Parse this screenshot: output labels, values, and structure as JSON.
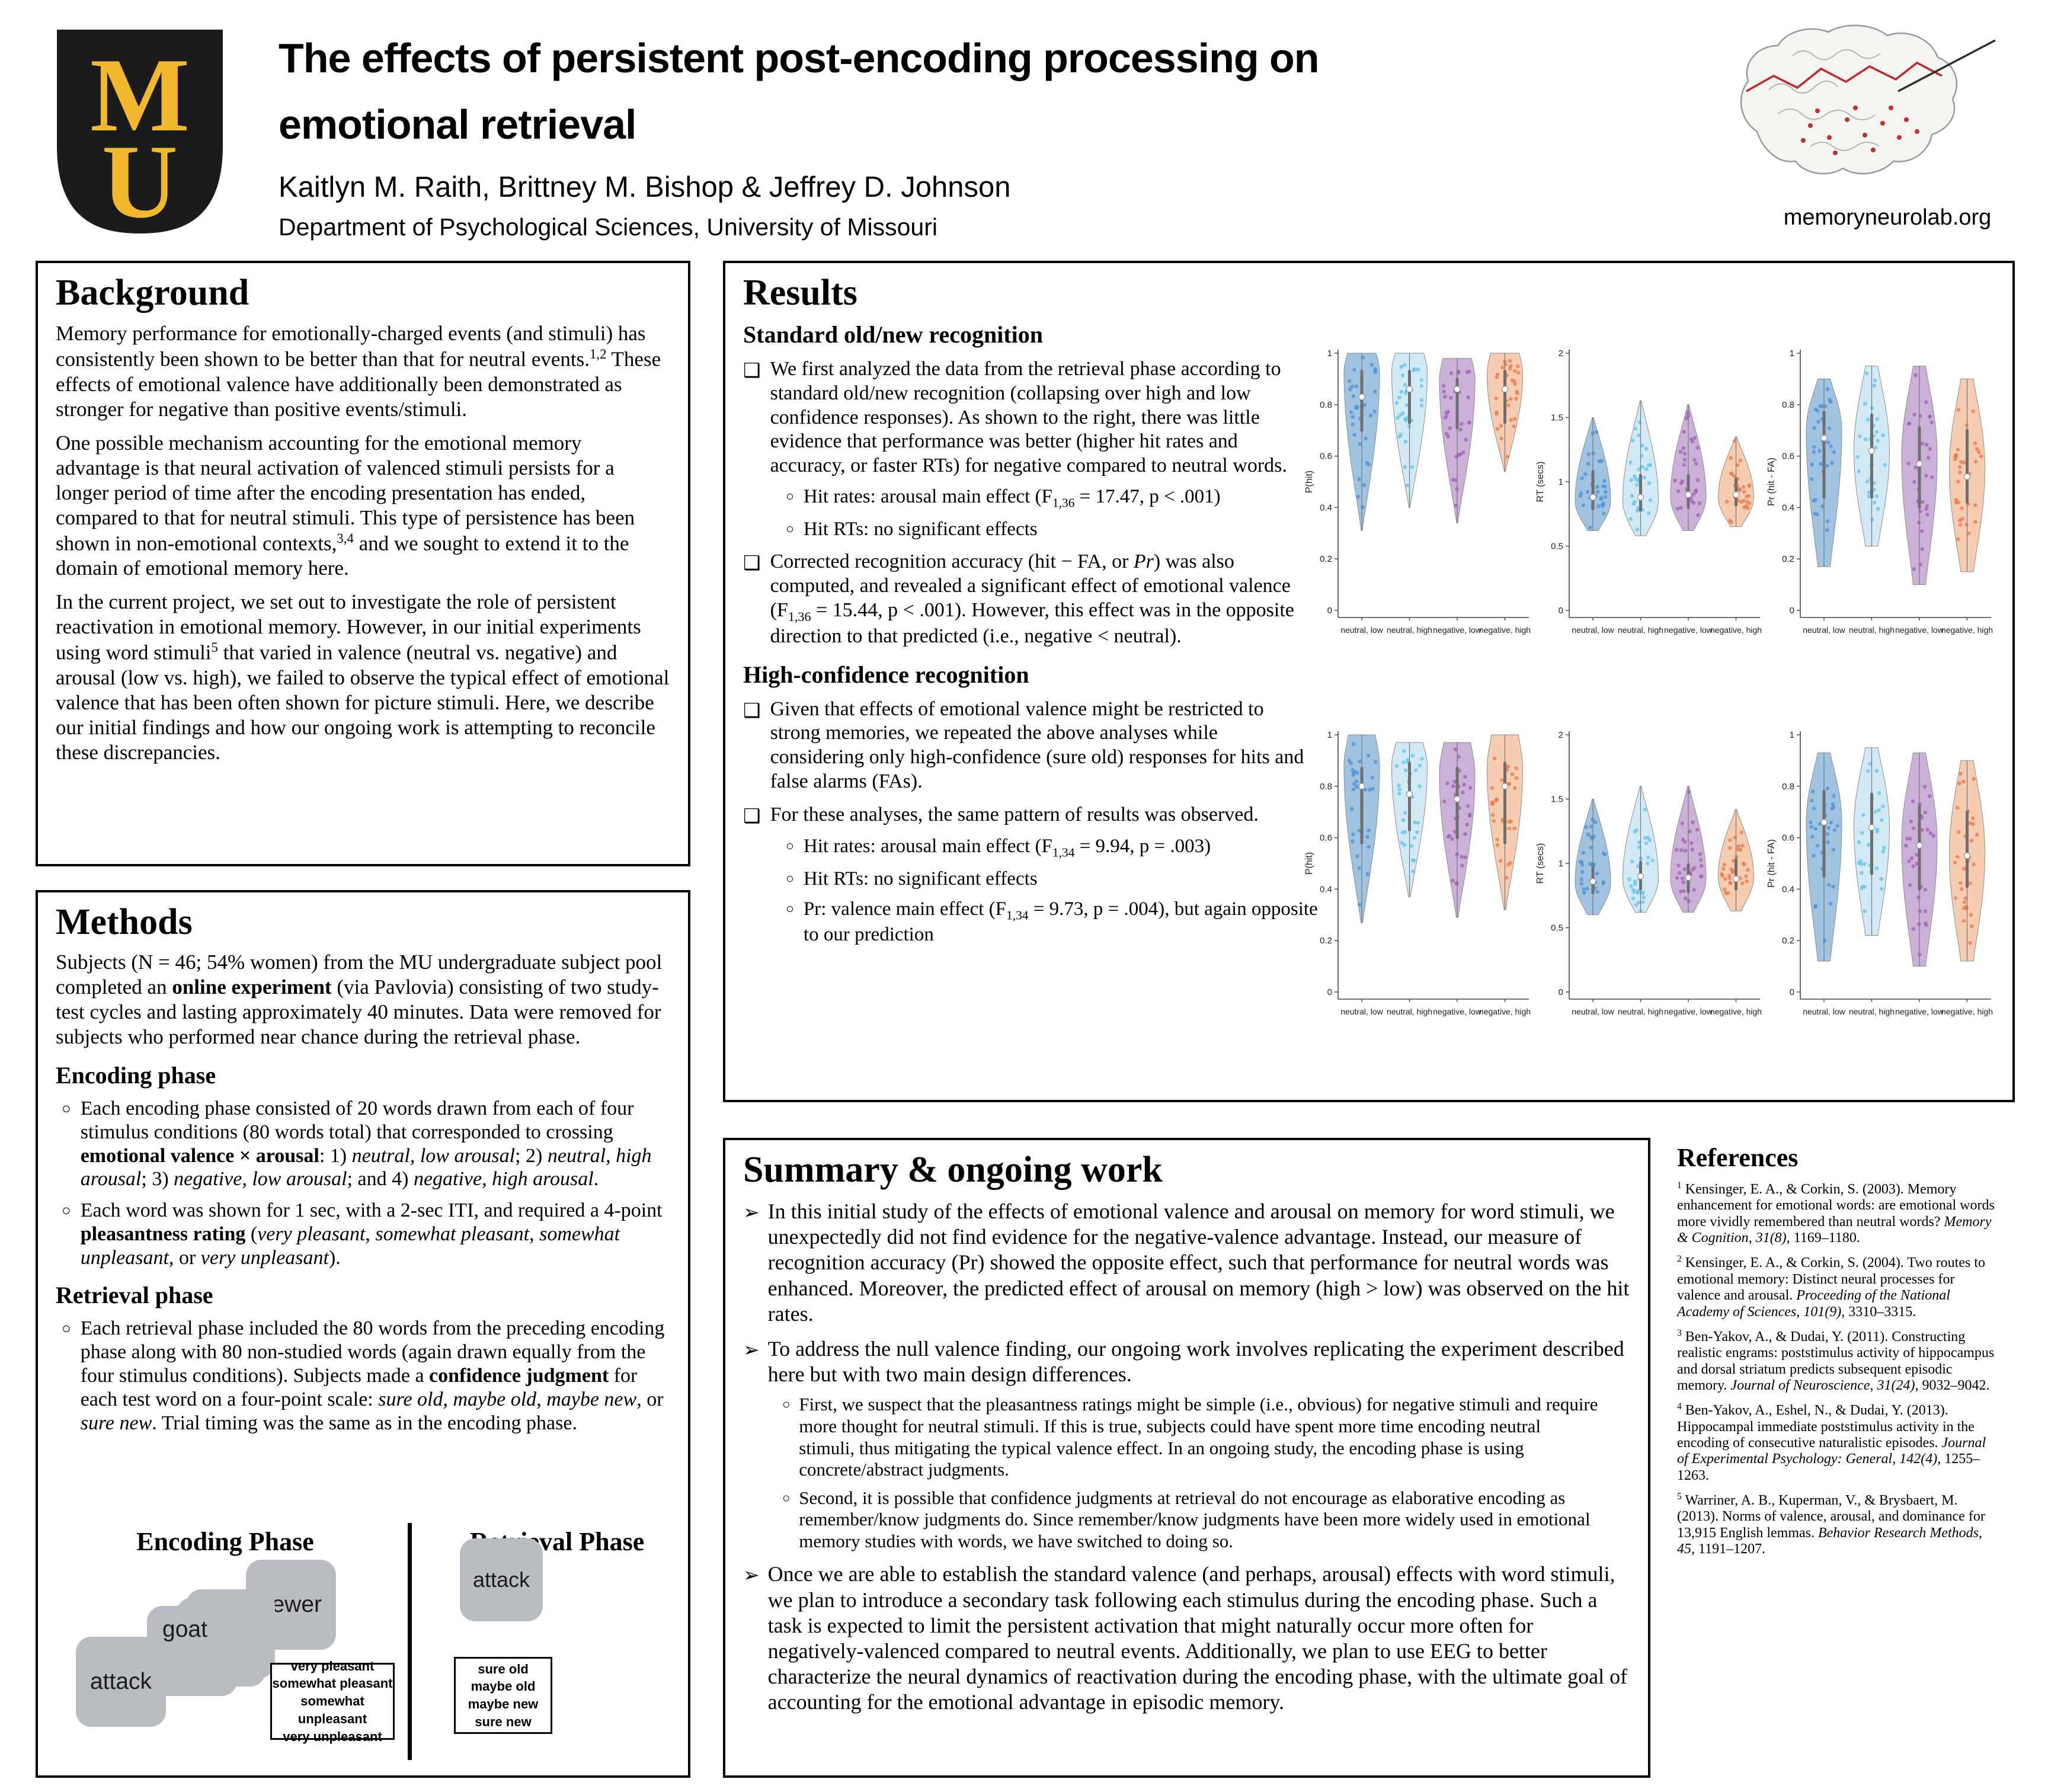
{
  "glyphs": {
    "square_bullet": "❑",
    "circle_bullet": "○",
    "arrow_bullet": "➢"
  },
  "header": {
    "title_line1": "The effects of persistent post-encoding processing on",
    "title_line2": "emotional retrieval",
    "authors": "Kaitlyn M. Raith, Brittney M. Bishop & Jeffrey D. Johnson",
    "department": "Department of Psychological Sciences, University of Missouri",
    "lab_url": "memoryneurolab.org",
    "logo_m": "M",
    "logo_u": "U",
    "logo_black": "#1b1b1b",
    "logo_gold": "#F1B82D"
  },
  "background": {
    "heading": "Background",
    "p1": "Memory performance for emotionally-charged events (and stimuli) has consistently been shown to be better than that for neutral events.<sup>1,2</sup> These effects of emotional valence have additionally been demonstrated as stronger for negative than positive events/stimuli.",
    "p2": "One possible mechanism accounting for the emotional memory advantage is that neural activation of valenced stimuli persists for a longer period of time after the encoding presentation has ended, compared to that for neutral stimuli. This type of persistence has been shown in non-emotional contexts,<sup>3,4</sup> and we sought to extend it to the domain of emotional memory here.",
    "p3": "In the current project, we set out to investigate the role of persistent reactivation in emotional memory. However, in our initial experiments using word stimuli<sup>5</sup> that varied in valence (neutral vs. negative) and arousal (low vs. high), we failed to observe the typical effect of emotional valence that has been often shown for picture stimuli. Here, we describe our initial findings and how our ongoing work is attempting to reconcile these discrepancies."
  },
  "methods": {
    "heading": "Methods",
    "intro": "Subjects (N = 46; 54% women) from the MU undergraduate subject pool completed an <b>online experiment</b> (via Pavlovia) consisting of two study-test cycles and lasting approximately 40 minutes. Data were removed for subjects who performed near chance during the retrieval phase.",
    "encoding_heading": "Encoding phase",
    "encoding_b1": "Each encoding phase consisted of 20 words drawn from each of four stimulus conditions (80 words total) that corresponded to crossing <b>emotional valence × arousal</b>: 1) <i>neutral, low arousal</i>; 2) <i>neutral, high arousal</i>; 3) <i>negative, low arousal</i>; and 4) <i>negative, high arousal</i>.",
    "encoding_b2": "Each word was shown for 1 sec, with a 2-sec ITI, and required a 4-point <b>pleasantness rating</b> (<i>very pleasant</i>, <i>somewhat pleasant</i>, <i>somewhat unpleasant</i>, or <i>very unpleasant</i>).",
    "retrieval_heading": "Retrieval phase",
    "retrieval_b1": "Each retrieval phase included the 80 words from the preceding encoding phase along with 80 non-studied words (again drawn equally from the four stimulus conditions). Subjects made a <b>confidence judgment</b> for each test word on a four-point scale: <i>sure old</i>, <i>maybe old</i>, <i>maybe new</i>, or <i>sure new</i>. Trial timing was the same as in the encoding phase.",
    "diagram": {
      "encoding_title": "Encoding Phase",
      "retrieval_title": "Retrieval Phase",
      "card_sewer": "sewer",
      "card_goat": "goat",
      "card_attack": "attack",
      "retrieval_card": "attack",
      "encoding_opt1": "very pleasant",
      "encoding_opt2": "somewhat pleasant",
      "encoding_opt3": "somewhat unpleasant",
      "encoding_opt4": "very unpleasant",
      "retrieval_opt1": "sure old",
      "retrieval_opt2": "maybe old",
      "retrieval_opt3": "maybe new",
      "retrieval_opt4": "sure new"
    }
  },
  "results": {
    "heading": "Results",
    "sub1": "Standard old/new recognition",
    "b1": "We first analyzed the data from the retrieval phase according to standard old/new recognition (collapsing over high and low confidence responses). As shown to the right, there was little evidence that performance was better (higher hit rates and accuracy, or faster RTs) for negative compared to neutral words.",
    "b1s1": "Hit rates: arousal main effect (F<sub>1,36</sub> = 17.47, p &lt; .001)",
    "b1s2": "Hit RTs: no significant effects",
    "b2": "Corrected recognition accuracy (hit − FA, or <i>Pr</i>) was also computed, and revealed a significant effect of emotional valence (F<sub>1,36</sub> = 15.44, p &lt; .001). However, this effect was in the opposite direction to that predicted (i.e., negative &lt; neutral).",
    "sub2": "High-confidence recognition",
    "b3": "Given that effects of emotional valence might be restricted to strong memories, we repeated the above analyses while considering only high-confidence (sure old) responses for hits and false alarms (FAs).",
    "b4": "For these analyses, the same pattern of results was observed.",
    "b4s1": "Hit rates: arousal main effect (F<sub>1,34</sub> = 9.94, p = .003)",
    "b4s2": "Hit RTs: no significant effects",
    "b4s3": "Pr: valence main effect (F<sub>1,34</sub> = 9.73, p = .004), but again opposite to our prediction"
  },
  "summary": {
    "heading": "Summary & ongoing work",
    "b1": "In this initial study of the effects of emotional valence and arousal on memory for word stimuli, we unexpectedly did not find evidence for the negative-valence advantage. Instead, our measure of recognition accuracy (Pr) showed the opposite effect, such that performance for neutral words was enhanced. Moreover, the predicted effect of arousal on memory (high &gt; low) was observed on the hit rates.",
    "b2": "To address the null valence finding, our ongoing work involves replicating the experiment described here but with two main design differences.",
    "b2s1": "First, we suspect that the pleasantness ratings might be simple (i.e., obvious) for negative stimuli and require more thought for neutral stimuli. If this is true, subjects could have spent more time encoding neutral stimuli, thus mitigating the typical valence effect. In an ongoing study, the encoding phase is using concrete/abstract judgments.",
    "b2s2": "Second, it is possible that confidence judgments at retrieval do not encourage as elaborative encoding as remember/know judgments do. Since remember/know judgments have been more widely used in emotional memory studies with words, we have switched to doing so.",
    "b3": "Once we are able to establish the standard valence (and perhaps, arousal) effects with word stimuli, we plan to introduce a secondary task following each stimulus during the encoding phase. Such a task is expected to limit the persistent activation that might naturally occur more often for negatively-valenced compared to neutral events. Additionally, we plan to use EEG to better characterize the neural dynamics of reactivation during the encoding phase, with the ultimate goal of accounting for the emotional advantage in episodic memory."
  },
  "references": {
    "heading": "References",
    "items": [
      "<sup>1</sup> Kensinger, E. A., &amp; Corkin, S. (2003). Memory enhancement for emotional words: are emotional words more vividly remembered than neutral words? <i>Memory &amp; Cognition</i>, <i>31(8)</i>, 1169–1180.",
      "<sup>2</sup> Kensinger, E. A., &amp; Corkin, S. (2004). Two routes to emotional memory: Distinct neural processes for valence and arousal. <i>Proceeding of the National Academy of Sciences</i>, <i>101(9)</i>, 3310–3315.",
      "<sup>3</sup> Ben-Yakov, A., &amp; Dudai, Y. (2011). Constructing realistic engrams: poststimulus activity of hippocampus and dorsal striatum predicts subsequent episodic memory. <i>Journal of Neuroscience</i>, <i>31(24)</i>, 9032–9042.",
      "<sup>4</sup> Ben-Yakov, A., Eshel, N., &amp; Dudai, Y. (2013). Hippocampal immediate poststimulus activity in the encoding of consecutive naturalistic episodes. <i>Journal of Experimental Psychology: General</i>, <i>142(4)</i>, 1255–1263.",
      "<sup>5</sup> Warriner, A. B., Kuperman, V., &amp; Brysbaert, M. (2013). Norms of valence, arousal, and dominance for 13,915 English lemmas. <i>Behavior Research Methods</i>, <i>45</i>, 1191–1207."
    ]
  },
  "chart_data": [
    {
      "type": "violin",
      "name": "old-new hit rate",
      "ylabel": "P(hit)",
      "ymax": 1,
      "yticks": [
        0,
        0.2,
        0.4,
        0.6,
        0.8,
        1
      ],
      "categories": [
        "neutral, low",
        "neutral, high",
        "negative, low",
        "negative, high"
      ],
      "fill": [
        "#8fb8dc",
        "#c9e6f5",
        "#c2a3d1",
        "#f6c4a3"
      ],
      "dots": [
        "#4f93d2",
        "#66c3e8",
        "#a263b5",
        "#e77b4e"
      ],
      "profile": {
        "botw": 0.03,
        "topw": 0.8
      },
      "violins": [
        {
          "lo": 0.31,
          "hi": 1.0,
          "peak": 0.93,
          "median": 0.83,
          "q1": 0.7,
          "q3": 0.93
        },
        {
          "lo": 0.4,
          "hi": 1.0,
          "peak": 0.93,
          "median": 0.86,
          "q1": 0.73,
          "q3": 0.93
        },
        {
          "lo": 0.34,
          "hi": 0.98,
          "peak": 0.9,
          "median": 0.86,
          "q1": 0.71,
          "q3": 0.9
        },
        {
          "lo": 0.54,
          "hi": 1.0,
          "peak": 0.92,
          "median": 0.86,
          "q1": 0.73,
          "q3": 0.93
        }
      ]
    },
    {
      "type": "violin",
      "name": "old-new hit RT",
      "ylabel": "RT (secs)",
      "ymax": 2,
      "yticks": [
        0,
        0.5,
        1,
        1.5,
        2
      ],
      "categories": [
        "neutral, low",
        "neutral, high",
        "negative, low",
        "negative, high"
      ],
      "fill": [
        "#8fb8dc",
        "#c9e6f5",
        "#c2a3d1",
        "#f6c4a3"
      ],
      "dots": [
        "#4f93d2",
        "#66c3e8",
        "#a263b5",
        "#e77b4e"
      ],
      "profile": {
        "botw": 0.3,
        "topw": 0.04
      },
      "violins": [
        {
          "lo": 0.62,
          "hi": 1.5,
          "peak": 0.85,
          "median": 0.88,
          "q1": 0.79,
          "q3": 1.08
        },
        {
          "lo": 0.58,
          "hi": 1.63,
          "peak": 0.85,
          "median": 0.88,
          "q1": 0.78,
          "q3": 1.05
        },
        {
          "lo": 0.62,
          "hi": 1.6,
          "peak": 0.88,
          "median": 0.9,
          "q1": 0.8,
          "q3": 1.05
        },
        {
          "lo": 0.65,
          "hi": 1.35,
          "peak": 0.88,
          "median": 0.9,
          "q1": 0.82,
          "q3": 1.02
        }
      ]
    },
    {
      "type": "violin",
      "name": "old-new Pr accuracy",
      "ylabel": "Pr (hit - FA)",
      "ymax": 1,
      "yticks": [
        0,
        0.2,
        0.4,
        0.6,
        0.8,
        1
      ],
      "categories": [
        "neutral, low",
        "neutral, high",
        "negative, low",
        "negative, high"
      ],
      "fill": [
        "#8fb8dc",
        "#c9e6f5",
        "#c2a3d1",
        "#f6c4a3"
      ],
      "dots": [
        "#4f93d2",
        "#66c3e8",
        "#a263b5",
        "#e77b4e"
      ],
      "profile": {
        "botw": 0.35,
        "topw": 0.35
      },
      "violins": [
        {
          "lo": 0.17,
          "hi": 0.9,
          "peak": 0.7,
          "median": 0.67,
          "q1": 0.44,
          "q3": 0.77
        },
        {
          "lo": 0.25,
          "hi": 0.95,
          "peak": 0.62,
          "median": 0.62,
          "q1": 0.44,
          "q3": 0.76
        },
        {
          "lo": 0.1,
          "hi": 0.95,
          "peak": 0.6,
          "median": 0.57,
          "q1": 0.4,
          "q3": 0.71
        },
        {
          "lo": 0.15,
          "hi": 0.9,
          "peak": 0.55,
          "median": 0.52,
          "q1": 0.42,
          "q3": 0.7
        }
      ]
    },
    {
      "type": "violin",
      "name": "high-confidence hit rate",
      "ylabel": "P(hit)",
      "ymax": 1,
      "yticks": [
        0,
        0.2,
        0.4,
        0.6,
        0.8,
        1
      ],
      "categories": [
        "neutral, low",
        "neutral, high",
        "negative, low",
        "negative, high"
      ],
      "fill": [
        "#8fb8dc",
        "#c9e6f5",
        "#c2a3d1",
        "#f6c4a3"
      ],
      "dots": [
        "#4f93d2",
        "#66c3e8",
        "#a263b5",
        "#e77b4e"
      ],
      "profile": {
        "botw": 0.05,
        "topw": 0.75
      },
      "violins": [
        {
          "lo": 0.27,
          "hi": 1.0,
          "peak": 0.88,
          "median": 0.8,
          "q1": 0.58,
          "q3": 0.87
        },
        {
          "lo": 0.37,
          "hi": 0.97,
          "peak": 0.88,
          "median": 0.77,
          "q1": 0.63,
          "q3": 0.89
        },
        {
          "lo": 0.29,
          "hi": 0.97,
          "peak": 0.85,
          "median": 0.75,
          "q1": 0.6,
          "q3": 0.87
        },
        {
          "lo": 0.32,
          "hi": 1.0,
          "peak": 0.87,
          "median": 0.8,
          "q1": 0.58,
          "q3": 0.89
        }
      ]
    },
    {
      "type": "violin",
      "name": "high-confidence hit RT",
      "ylabel": "RT (secs)",
      "ymax": 2,
      "yticks": [
        0,
        0.5,
        1,
        1.5,
        2
      ],
      "categories": [
        "neutral, low",
        "neutral, high",
        "negative, low",
        "negative, high"
      ],
      "fill": [
        "#8fb8dc",
        "#c9e6f5",
        "#c2a3d1",
        "#f6c4a3"
      ],
      "dots": [
        "#4f93d2",
        "#66c3e8",
        "#a263b5",
        "#e77b4e"
      ],
      "profile": {
        "botw": 0.3,
        "topw": 0.04
      },
      "violins": [
        {
          "lo": 0.6,
          "hi": 1.5,
          "peak": 0.85,
          "median": 0.86,
          "q1": 0.77,
          "q3": 0.97
        },
        {
          "lo": 0.62,
          "hi": 1.6,
          "peak": 0.88,
          "median": 0.9,
          "q1": 0.8,
          "q3": 1.01
        },
        {
          "lo": 0.62,
          "hi": 1.6,
          "peak": 0.88,
          "median": 0.89,
          "q1": 0.78,
          "q3": 0.99
        },
        {
          "lo": 0.63,
          "hi": 1.42,
          "peak": 0.9,
          "median": 0.88,
          "q1": 0.8,
          "q3": 1.03
        }
      ]
    },
    {
      "type": "violin",
      "name": "high-confidence Pr accuracy",
      "ylabel": "Pr (hit - FA)",
      "ymax": 1,
      "yticks": [
        0,
        0.2,
        0.4,
        0.6,
        0.8,
        1
      ],
      "categories": [
        "neutral, low",
        "neutral, high",
        "negative, low",
        "negative, high"
      ],
      "fill": [
        "#8fb8dc",
        "#c9e6f5",
        "#c2a3d1",
        "#f6c4a3"
      ],
      "dots": [
        "#4f93d2",
        "#66c3e8",
        "#a263b5",
        "#e77b4e"
      ],
      "profile": {
        "botw": 0.35,
        "topw": 0.35
      },
      "violins": [
        {
          "lo": 0.12,
          "hi": 0.93,
          "peak": 0.66,
          "median": 0.66,
          "q1": 0.45,
          "q3": 0.78
        },
        {
          "lo": 0.22,
          "hi": 0.95,
          "peak": 0.64,
          "median": 0.64,
          "q1": 0.46,
          "q3": 0.77
        },
        {
          "lo": 0.1,
          "hi": 0.93,
          "peak": 0.58,
          "median": 0.57,
          "q1": 0.4,
          "q3": 0.72
        },
        {
          "lo": 0.12,
          "hi": 0.9,
          "peak": 0.54,
          "median": 0.53,
          "q1": 0.41,
          "q3": 0.7
        }
      ]
    }
  ]
}
